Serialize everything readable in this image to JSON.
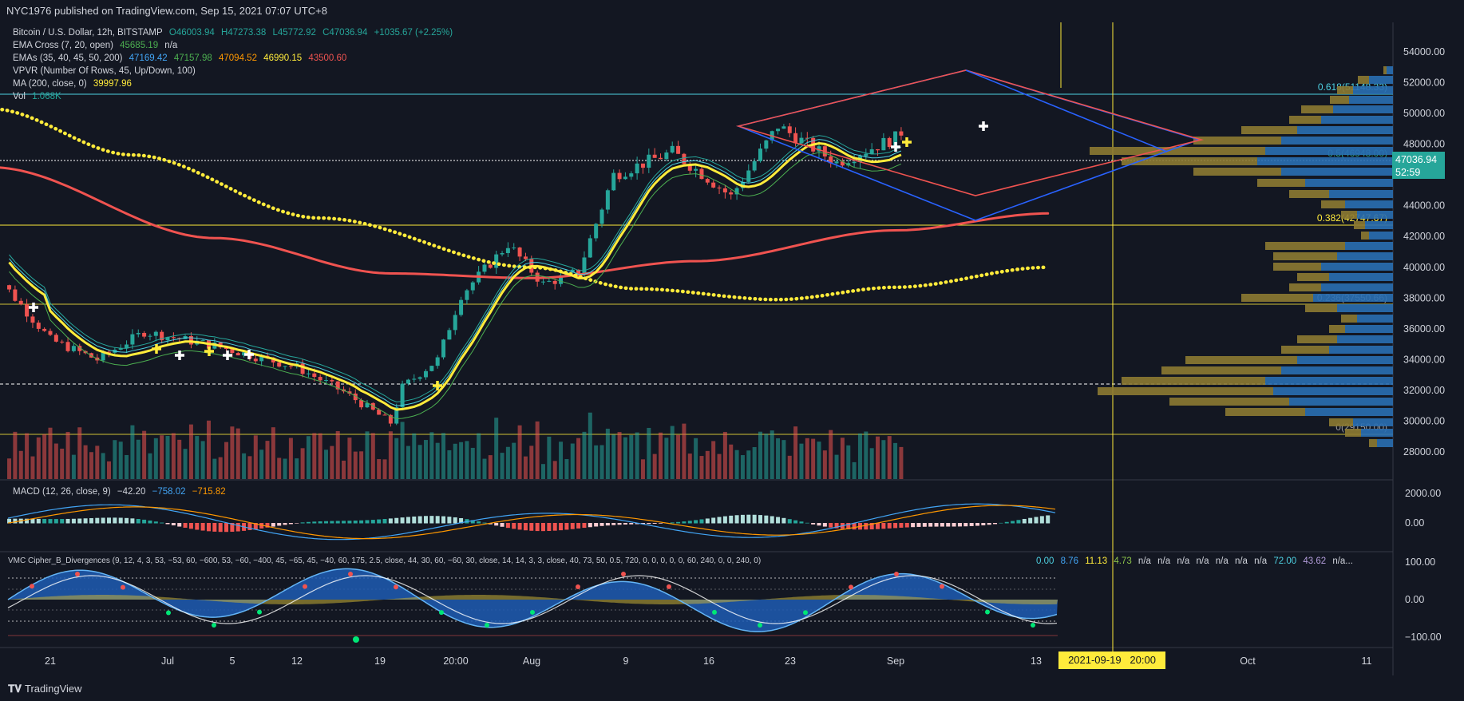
{
  "header": {
    "published": "NYC1976 published on TradingView.com, Sep 15, 2021 07:07 UTC+8"
  },
  "footer": {
    "brand": "TradingView"
  },
  "legend": {
    "symbol": "Bitcoin / U.S. Dollar, 12h, BITSTAMP",
    "o": "O46003.94",
    "h": "H47273.38",
    "l": "L45772.92",
    "c": "C47036.94",
    "chg": "+1035.67 (+2.25%)",
    "ema_cross_label": "EMA Cross (7, 20, open)",
    "ema_cross_v1": "45685.19",
    "ema_cross_v2": "n/a",
    "emas_label": "EMAs (35, 40, 45, 50, 200)",
    "emas_v1": "47169.42",
    "emas_v2": "47157.98",
    "emas_v3": "47094.52",
    "emas_v4": "46990.15",
    "emas_v5": "43500.60",
    "vpvr_label": "VPVR (Number Of Rows, 45, Up/Down, 100)",
    "ma_label": "MA (200, close, 0)",
    "ma_v": "39997.96",
    "vol_label": "Vol",
    "vol_v": "1.068K",
    "macd_label": "MACD (12, 26, close, 9)",
    "macd_v1": "−42.20",
    "macd_v2": "−758.02",
    "macd_v3": "−715.82",
    "vmc_label": "VMC Cipher_B_Divergences (9, 12, 4, 3, 53, −53, 60, −600, 53, −60, −400, 45, −65, 45, −40, 60, 175, 2.5, close, 44, 30, 60, −60, 30, close, 14, 14, 3, 3, close, 40, 73, 50, 0.5, 720, 0, 0, 0, 0, 0, 60, 240, 0, 0, 240, 0)",
    "vmc_vals": [
      "0.00",
      "8.76",
      "11.13",
      "4.73",
      "n/a",
      "n/a",
      "n/a",
      "n/a",
      "n/a",
      "n/a",
      "n/a",
      "72.00",
      "43.62",
      "n/a..."
    ]
  },
  "price_badge": {
    "price": "47036.94",
    "countdown": "52:59"
  },
  "cursor_badge": "2021-09-19   20:00",
  "fib_levels": [
    {
      "label": "0.618(51148.33)",
      "price": 51148.33,
      "color": "#4dd0e1"
    },
    {
      "label": "0.5(46948.00)",
      "price": 46948.0,
      "color": "#26a69a"
    },
    {
      "label": "0.382(42747.67)",
      "price": 42747.67,
      "color": "#ffeb3b"
    },
    {
      "label": "0.236(37550.66)",
      "price": 37550.66,
      "color": "#9e9e9e"
    },
    {
      "label": "0(29150.00)",
      "price": 29150.0,
      "color": "#9e9e9e"
    }
  ],
  "colors": {
    "bg": "#131722",
    "up": "#26a69a",
    "down": "#ef5350",
    "ema200": "#f05350",
    "ema_fast": "#ffeb3b",
    "ma200": "#ffeb3b",
    "triangle_blue": "#2962ff",
    "triangle_red": "#ef5350"
  },
  "chart_data": {
    "type": "candlestick",
    "title": "Bitcoin / U.S. Dollar, 12h, BITSTAMP",
    "y_axis": {
      "ticks": [
        28000,
        30000,
        32000,
        34000,
        36000,
        38000,
        40000,
        42000,
        44000,
        46000,
        48000,
        50000,
        52000,
        54000
      ],
      "range": [
        26900,
        55500
      ]
    },
    "macd_axis": {
      "ticks": [
        "2000.00",
        "0.00"
      ]
    },
    "vmc_axis": {
      "ticks": [
        "100.00",
        "0.00",
        "−100.00"
      ]
    },
    "x_axis_labels": [
      "21",
      "Jul",
      "5",
      "12",
      "19",
      "20:00",
      "Aug",
      "9",
      "16",
      "23",
      "Sep",
      "13",
      "Oct",
      "11"
    ],
    "price_series_anchors": {
      "x": [
        "Jun 16",
        "Jun 21",
        "Jun 25",
        "Jun 29",
        "Jul 5",
        "Jul 12",
        "Jul 16",
        "Jul 20",
        "Jul 21",
        "Jul 24",
        "Jul 26",
        "Jul 30",
        "Aug 2",
        "Aug 5",
        "Aug 8",
        "Aug 13",
        "Aug 16",
        "Aug 18",
        "Aug 22",
        "Aug 27",
        "Sep 1",
        "Sep 5",
        "Sep 7",
        "Sep 8",
        "Sep 10",
        "Sep 13",
        "Sep 14"
      ],
      "close": [
        39800,
        35300,
        34000,
        35800,
        34900,
        33500,
        31900,
        29900,
        32200,
        34000,
        38200,
        41500,
        38900,
        39700,
        46000,
        47500,
        45800,
        44600,
        49200,
        46800,
        48400,
        51600,
        46300,
        46200,
        45000,
        44900,
        47036.94
      ]
    },
    "ema200": {
      "x": [
        "Jun 16",
        "Jul 5",
        "Jul 20",
        "Aug 1",
        "Aug 15",
        "Sep 1",
        "Sep 14"
      ],
      "values": [
        46500,
        41900,
        39600,
        39300,
        40400,
        42400,
        43500.6
      ]
    },
    "ma200": {
      "x": [
        "Jun 16",
        "Jun 28",
        "Jul 14",
        "Aug 1",
        "Aug 10",
        "Aug 22",
        "Sep 1",
        "Sep 14"
      ],
      "values": [
        50300,
        47300,
        43200,
        40000,
        38600,
        37900,
        38700,
        39998
      ]
    },
    "volume_label": "Vol 1.068K"
  }
}
